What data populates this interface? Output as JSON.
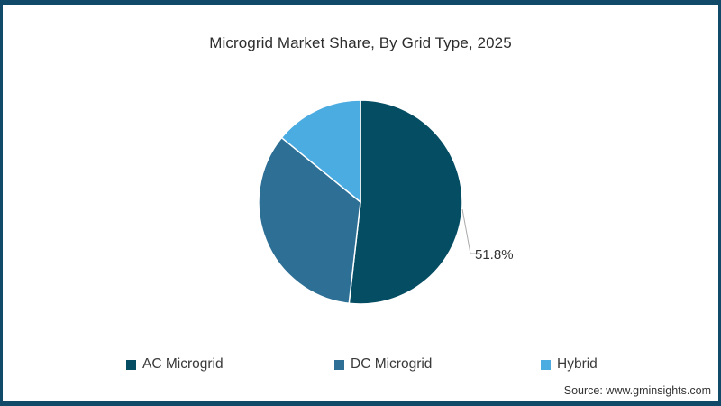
{
  "title": "Microgrid Market Share, By Grid Type, 2025",
  "source_text": "Source: www.gminsights.com",
  "colors": {
    "frame_bar": "#114a68",
    "background": "#ffffff",
    "slice_separator": "#ffffff",
    "leader_line": "#aaaaaa"
  },
  "chart_data": {
    "type": "pie",
    "title": "Microgrid Market Share, By Grid Type, 2025",
    "unit": "%",
    "direction": "clockwise",
    "start_angle_deg": 0,
    "legend_position": "bottom",
    "slices": [
      {
        "label": "AC Microgrid",
        "value": 51.8,
        "color": "#054d63",
        "data_label": "51.8%"
      },
      {
        "label": "DC Microgrid",
        "value": 34.1,
        "color": "#2e6f95",
        "data_label": ""
      },
      {
        "label": "Hybrid",
        "value": 14.1,
        "color": "#4bace2",
        "data_label": ""
      }
    ]
  }
}
